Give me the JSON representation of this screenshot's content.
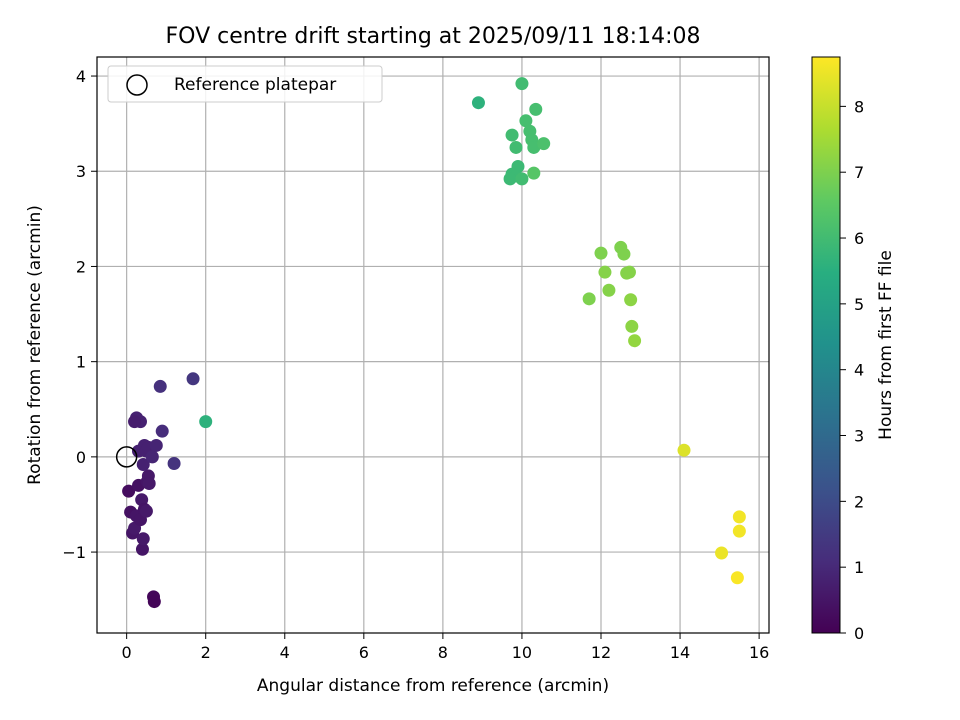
{
  "chart_data": {
    "type": "scatter",
    "title": "FOV centre drift starting at 2025/09/11 18:14:08",
    "xlabel": "Angular distance from reference (arcmin)",
    "ylabel": "Rotation from reference (arcmin)",
    "xlim": [
      -0.75,
      16.25
    ],
    "ylim": [
      -1.85,
      4.2
    ],
    "xticks": [
      0,
      2,
      4,
      6,
      8,
      10,
      12,
      14,
      16
    ],
    "yticks": [
      -1,
      0,
      1,
      2,
      3,
      4
    ],
    "xtick_labels": [
      "0",
      "2",
      "4",
      "6",
      "8",
      "10",
      "12",
      "14",
      "16"
    ],
    "ytick_labels": [
      "−1",
      "0",
      "1",
      "2",
      "3",
      "4"
    ],
    "grid": true,
    "legend": {
      "position": "top-left",
      "entries": [
        "Reference platepar"
      ]
    },
    "reference_point": {
      "x": 0,
      "y": 0
    },
    "colorbar": {
      "label": "Hours from first FF file",
      "colormap": "viridis",
      "range": [
        0,
        8.75
      ],
      "ticks": [
        0,
        1,
        2,
        3,
        4,
        5,
        6,
        7,
        8
      ],
      "tick_labels": [
        "0",
        "1",
        "2",
        "3",
        "4",
        "5",
        "6",
        "7",
        "8"
      ]
    },
    "points": [
      {
        "x": 0.05,
        "y": -0.36,
        "h": 0.3
      },
      {
        "x": 0.1,
        "y": -0.58,
        "h": 0.4
      },
      {
        "x": 0.15,
        "y": -0.8,
        "h": 0.5
      },
      {
        "x": 0.2,
        "y": -0.75,
        "h": 0.6
      },
      {
        "x": 0.25,
        "y": -0.62,
        "h": 0.5
      },
      {
        "x": 0.3,
        "y": -0.3,
        "h": 0.4
      },
      {
        "x": 0.35,
        "y": -0.66,
        "h": 0.5
      },
      {
        "x": 0.38,
        "y": -0.45,
        "h": 0.6
      },
      {
        "x": 0.4,
        "y": -0.97,
        "h": 0.5
      },
      {
        "x": 0.42,
        "y": -0.86,
        "h": 0.6
      },
      {
        "x": 0.45,
        "y": -0.55,
        "h": 0.5
      },
      {
        "x": 0.5,
        "y": -0.57,
        "h": 0.6
      },
      {
        "x": 0.52,
        "y": -0.26,
        "h": 0.5
      },
      {
        "x": 0.55,
        "y": -0.2,
        "h": 0.6
      },
      {
        "x": 0.57,
        "y": -0.28,
        "h": 0.6
      },
      {
        "x": 0.25,
        "y": 0.41,
        "h": 0.8
      },
      {
        "x": 0.35,
        "y": 0.37,
        "h": 0.8
      },
      {
        "x": 0.2,
        "y": 0.37,
        "h": 0.7
      },
      {
        "x": 0.3,
        "y": 0.06,
        "h": 0.8
      },
      {
        "x": 0.42,
        "y": -0.08,
        "h": 0.8
      },
      {
        "x": 0.45,
        "y": 0.12,
        "h": 0.8
      },
      {
        "x": 0.5,
        "y": 0.06,
        "h": 0.8
      },
      {
        "x": 0.55,
        "y": 0.1,
        "h": 0.8
      },
      {
        "x": 0.65,
        "y": 0.0,
        "h": 0.9
      },
      {
        "x": 0.75,
        "y": 0.12,
        "h": 0.9
      },
      {
        "x": 0.85,
        "y": 0.74,
        "h": 1.2
      },
      {
        "x": 0.9,
        "y": 0.27,
        "h": 1.1
      },
      {
        "x": 1.2,
        "y": -0.07,
        "h": 1.3
      },
      {
        "x": 1.68,
        "y": 0.82,
        "h": 1.4
      },
      {
        "x": 0.68,
        "y": -1.47,
        "h": 0.15
      },
      {
        "x": 0.7,
        "y": -1.52,
        "h": 0.1
      },
      {
        "x": 2.0,
        "y": 0.37,
        "h": 5.6
      },
      {
        "x": 8.9,
        "y": 3.72,
        "h": 5.6
      },
      {
        "x": 10.0,
        "y": 3.92,
        "h": 6.0
      },
      {
        "x": 10.1,
        "y": 3.53,
        "h": 6.1
      },
      {
        "x": 10.35,
        "y": 3.65,
        "h": 6.1
      },
      {
        "x": 9.75,
        "y": 3.38,
        "h": 6.0
      },
      {
        "x": 10.2,
        "y": 3.42,
        "h": 6.1
      },
      {
        "x": 9.85,
        "y": 3.25,
        "h": 6.0
      },
      {
        "x": 10.25,
        "y": 3.33,
        "h": 6.1
      },
      {
        "x": 10.3,
        "y": 3.25,
        "h": 6.1
      },
      {
        "x": 10.55,
        "y": 3.29,
        "h": 6.2
      },
      {
        "x": 9.9,
        "y": 3.05,
        "h": 5.9
      },
      {
        "x": 9.75,
        "y": 2.97,
        "h": 5.9
      },
      {
        "x": 9.85,
        "y": 2.95,
        "h": 5.9
      },
      {
        "x": 9.7,
        "y": 2.92,
        "h": 5.9
      },
      {
        "x": 10.0,
        "y": 2.92,
        "h": 6.0
      },
      {
        "x": 10.3,
        "y": 2.98,
        "h": 6.4
      },
      {
        "x": 12.5,
        "y": 2.2,
        "h": 7.0
      },
      {
        "x": 12.58,
        "y": 2.13,
        "h": 7.0
      },
      {
        "x": 12.0,
        "y": 2.14,
        "h": 7.0
      },
      {
        "x": 12.1,
        "y": 1.94,
        "h": 7.1
      },
      {
        "x": 12.65,
        "y": 1.93,
        "h": 7.1
      },
      {
        "x": 12.72,
        "y": 1.94,
        "h": 7.1
      },
      {
        "x": 12.2,
        "y": 1.75,
        "h": 7.1
      },
      {
        "x": 11.7,
        "y": 1.66,
        "h": 7.0
      },
      {
        "x": 12.75,
        "y": 1.65,
        "h": 7.2
      },
      {
        "x": 12.78,
        "y": 1.37,
        "h": 7.2
      },
      {
        "x": 12.85,
        "y": 1.22,
        "h": 7.3
      },
      {
        "x": 14.1,
        "y": 0.07,
        "h": 8.3
      },
      {
        "x": 15.5,
        "y": -0.63,
        "h": 8.6
      },
      {
        "x": 15.5,
        "y": -0.78,
        "h": 8.6
      },
      {
        "x": 15.05,
        "y": -1.01,
        "h": 8.5
      },
      {
        "x": 15.45,
        "y": -1.27,
        "h": 8.7
      }
    ]
  }
}
